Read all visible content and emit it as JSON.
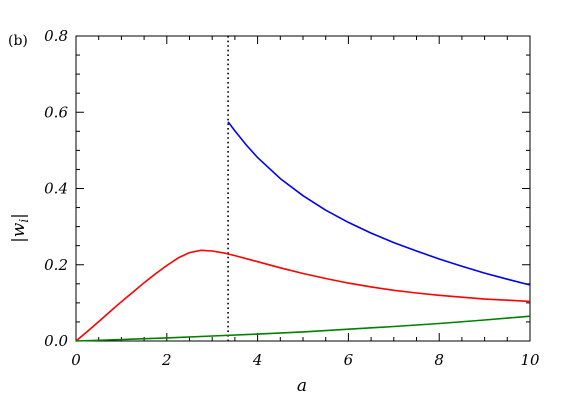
{
  "chart_data": {
    "type": "line",
    "panel_label": "(b)",
    "xlabel": "a",
    "ylabel": "|w",
    "ylabel_sub": "i",
    "xlim": [
      0,
      10
    ],
    "ylim": [
      0,
      0.8
    ],
    "x_ticks": [
      0,
      2,
      4,
      6,
      8,
      10
    ],
    "x_tick_labels": [
      "0",
      "2",
      "4",
      "6",
      "8",
      "10"
    ],
    "y_ticks": [
      0.0,
      0.2,
      0.4,
      0.6,
      0.8
    ],
    "y_tick_labels": [
      "0.0",
      "0.2",
      "0.4",
      "0.6",
      "0.8"
    ],
    "grid": false,
    "vline": {
      "x": 3.35,
      "style": "dotted",
      "color": "#000000"
    },
    "series": [
      {
        "color": "#0000ff",
        "points": [
          [
            3.35,
            0.575
          ],
          [
            3.5,
            0.551
          ],
          [
            3.75,
            0.514
          ],
          [
            4.0,
            0.481
          ],
          [
            4.5,
            0.426
          ],
          [
            5.0,
            0.381
          ],
          [
            5.5,
            0.343
          ],
          [
            6.0,
            0.311
          ],
          [
            6.5,
            0.283
          ],
          [
            7.0,
            0.258
          ],
          [
            7.5,
            0.236
          ],
          [
            8.0,
            0.215
          ],
          [
            8.5,
            0.196
          ],
          [
            9.0,
            0.178
          ],
          [
            9.5,
            0.162
          ],
          [
            10.0,
            0.147
          ]
        ]
      },
      {
        "color": "#ff0000",
        "points": [
          [
            0.0,
            0.0
          ],
          [
            0.25,
            0.025
          ],
          [
            0.5,
            0.051
          ],
          [
            0.75,
            0.077
          ],
          [
            1.0,
            0.103
          ],
          [
            1.25,
            0.128
          ],
          [
            1.5,
            0.153
          ],
          [
            1.75,
            0.176
          ],
          [
            2.0,
            0.198
          ],
          [
            2.25,
            0.218
          ],
          [
            2.5,
            0.232
          ],
          [
            2.75,
            0.238
          ],
          [
            3.0,
            0.236
          ],
          [
            3.25,
            0.231
          ],
          [
            3.5,
            0.224
          ],
          [
            4.0,
            0.208
          ],
          [
            4.5,
            0.192
          ],
          [
            5.0,
            0.177
          ],
          [
            5.5,
            0.164
          ],
          [
            6.0,
            0.152
          ],
          [
            6.5,
            0.142
          ],
          [
            7.0,
            0.133
          ],
          [
            7.5,
            0.126
          ],
          [
            8.0,
            0.12
          ],
          [
            8.5,
            0.115
          ],
          [
            9.0,
            0.11
          ],
          [
            9.5,
            0.107
          ],
          [
            10.0,
            0.104
          ]
        ]
      },
      {
        "color": "#008000",
        "points": [
          [
            0.0,
            0.0
          ],
          [
            1.0,
            0.004
          ],
          [
            2.0,
            0.008
          ],
          [
            3.0,
            0.013
          ],
          [
            4.0,
            0.018
          ],
          [
            5.0,
            0.024
          ],
          [
            6.0,
            0.031
          ],
          [
            7.0,
            0.038
          ],
          [
            8.0,
            0.046
          ],
          [
            9.0,
            0.055
          ],
          [
            10.0,
            0.065
          ]
        ]
      }
    ]
  }
}
